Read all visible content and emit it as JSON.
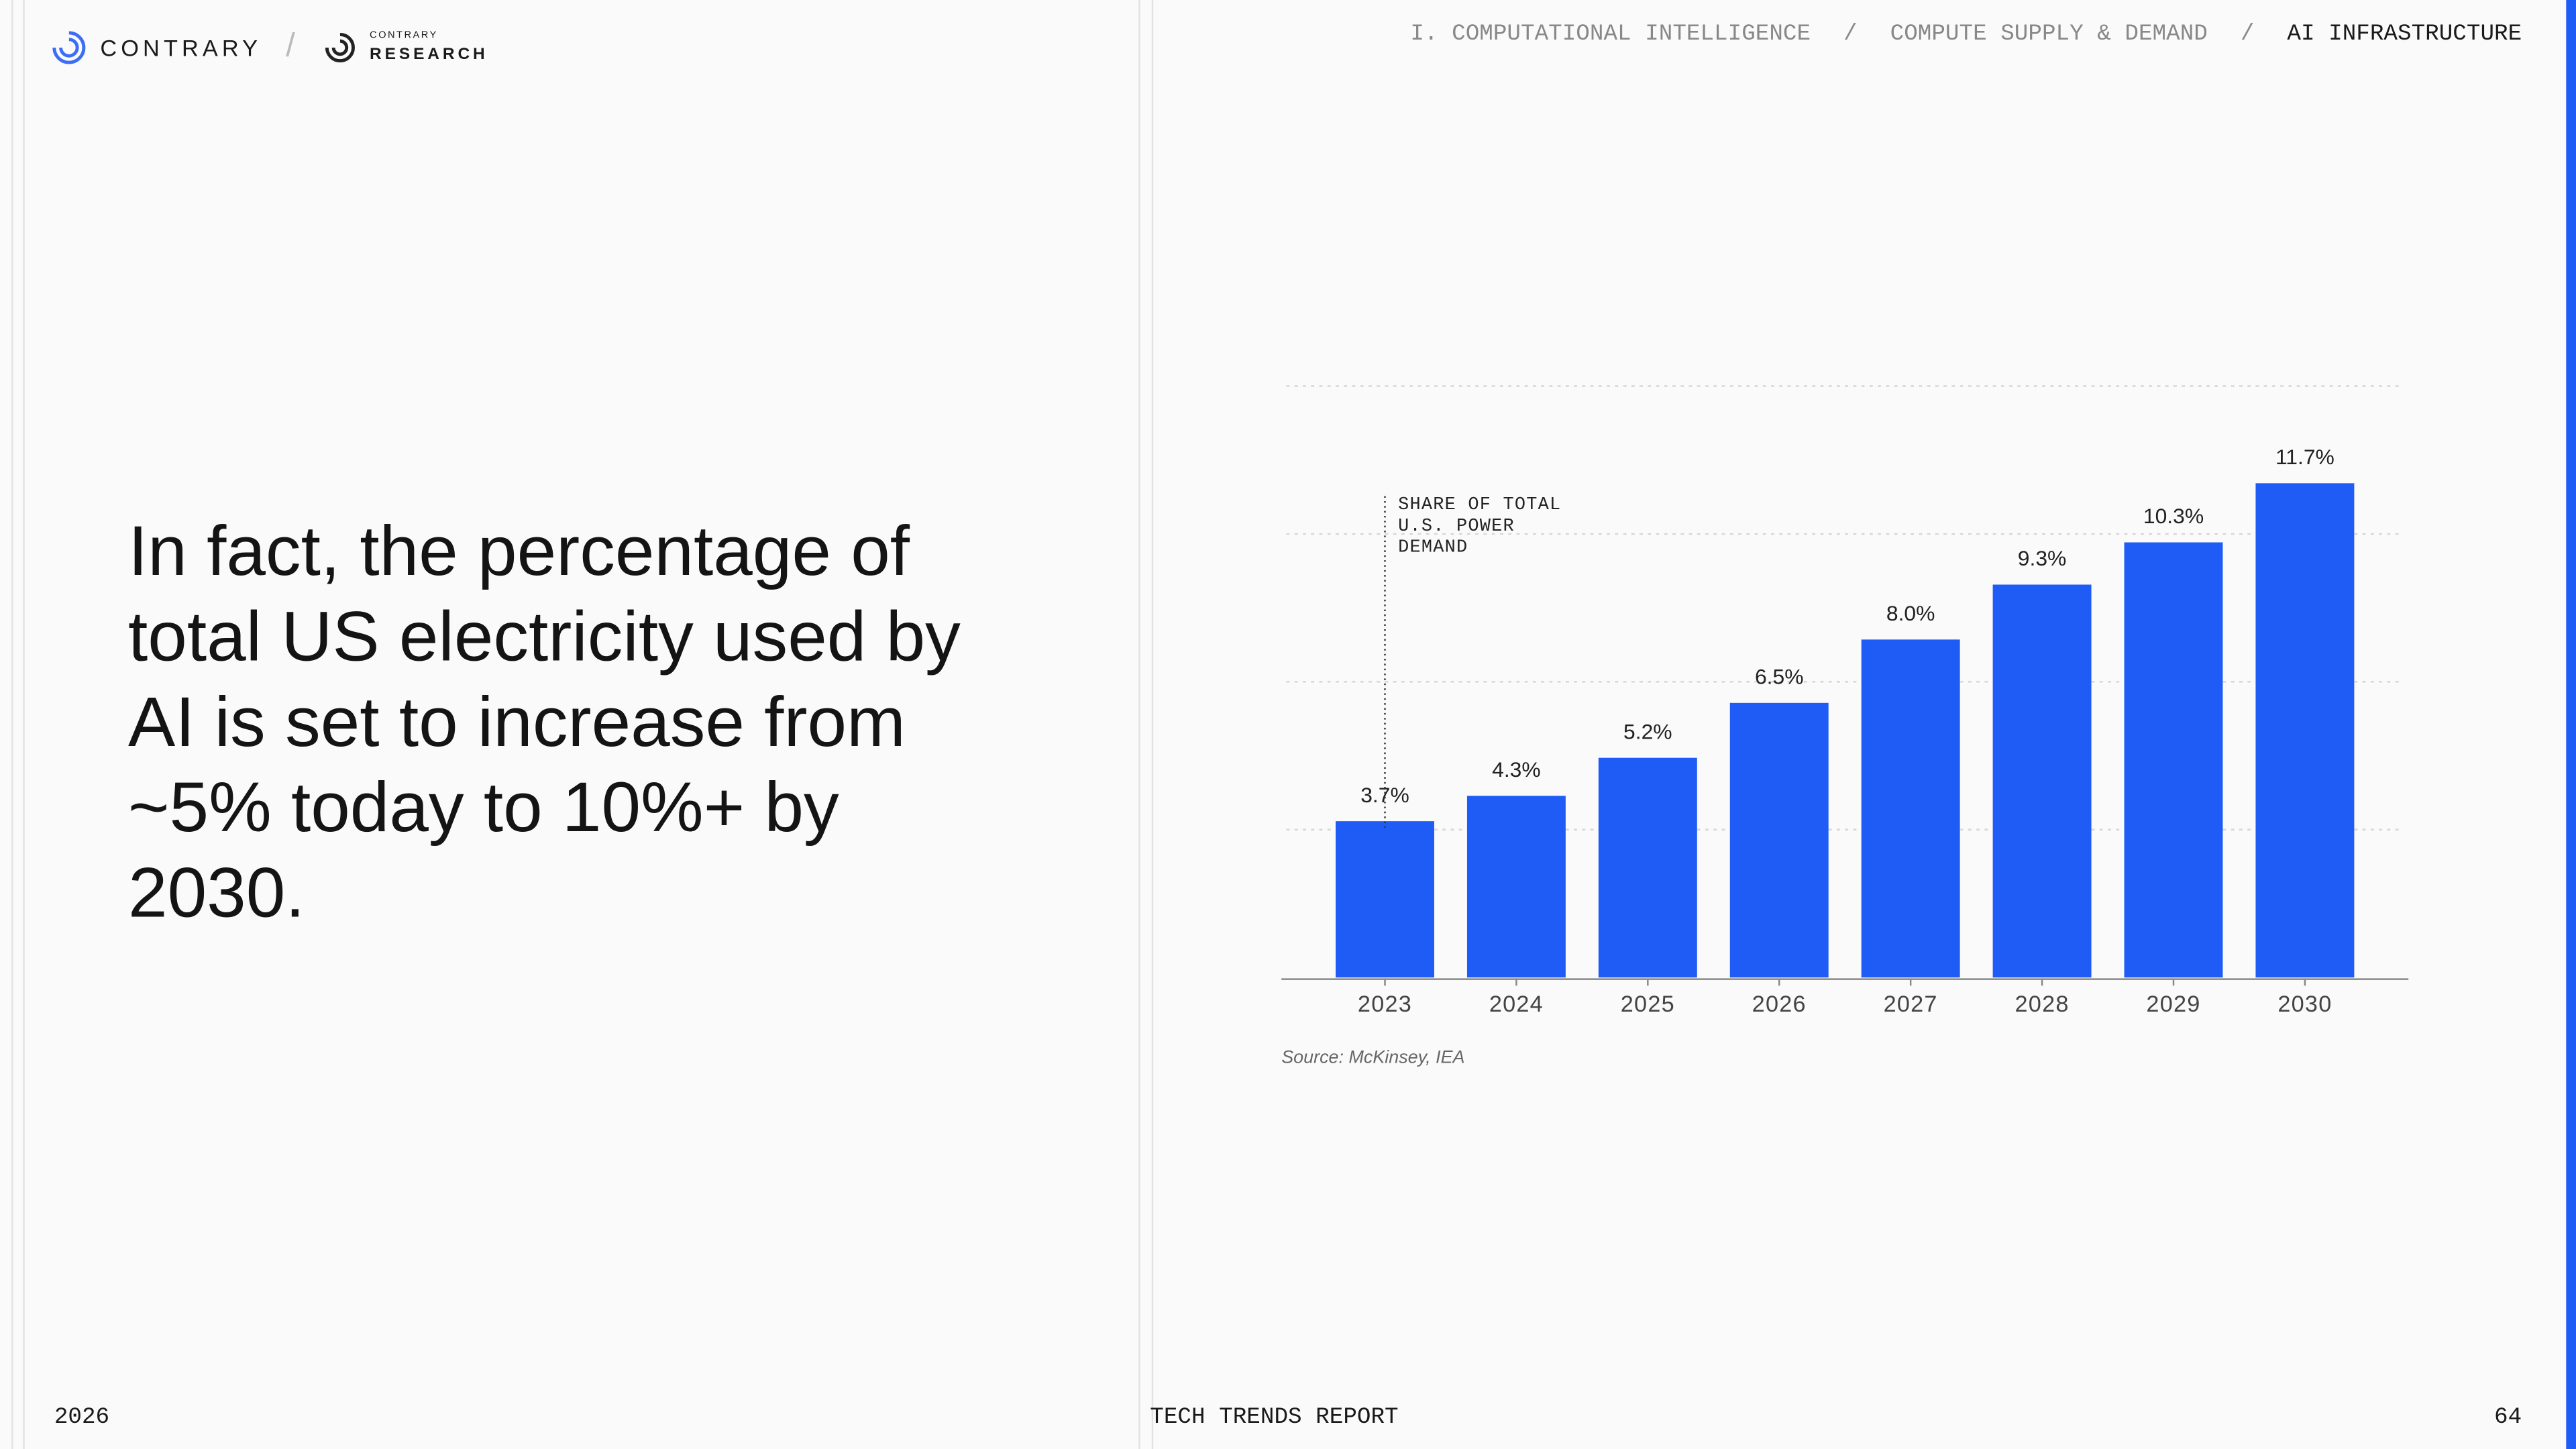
{
  "header": {
    "brand": "CONTRARY",
    "separator": "/",
    "sub_brand_small": "CONTRARY",
    "sub_brand": "RESEARCH",
    "breadcrumb": [
      "I. COMPUTATIONAL INTELLIGENCE",
      "COMPUTE SUPPLY & DEMAND",
      "AI INFRASTRUCTURE"
    ]
  },
  "headline": "In fact, the percentage of total US electricity used by AI is set to increase from ~5% today to 10%+ by 2030.",
  "chart_data": {
    "type": "bar",
    "categories": [
      "2023",
      "2024",
      "2025",
      "2026",
      "2027",
      "2028",
      "2029",
      "2030"
    ],
    "values": [
      3.7,
      4.3,
      5.2,
      6.5,
      8.0,
      9.3,
      10.3,
      11.7
    ],
    "value_labels": [
      "3.7%",
      "4.3%",
      "5.2%",
      "6.5%",
      "8.0%",
      "9.3%",
      "10.3%",
      "11.7%"
    ],
    "color": "#1f5bf5",
    "ylim": [
      0,
      14
    ],
    "yticks": [
      3.5,
      7,
      10.5,
      14
    ],
    "grid": true,
    "annotation": [
      "SHARE OF TOTAL",
      "U.S. POWER",
      "DEMAND"
    ],
    "source": "Source: McKinsey, IEA"
  },
  "footer": {
    "year": "2026",
    "report": "TECH TRENDS REPORT",
    "page": "64"
  }
}
